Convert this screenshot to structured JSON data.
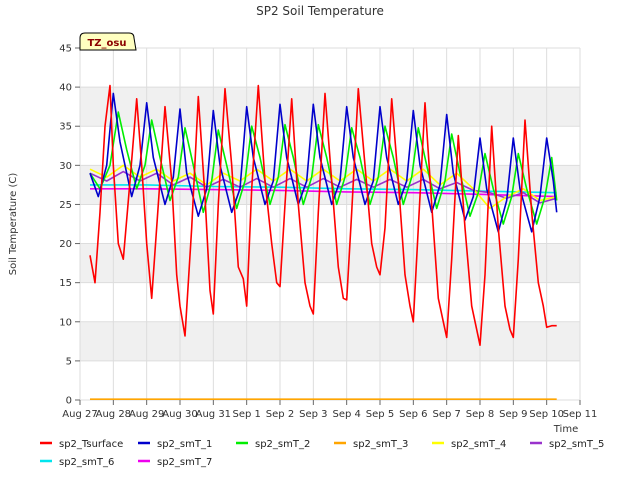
{
  "chart_data": {
    "type": "line",
    "title": "SP2 Soil Temperature",
    "xlabel": "Time",
    "ylabel": "Soil Temperature (C)",
    "badge": "TZ_osu",
    "xlim": [
      0,
      15
    ],
    "ylim": [
      0,
      45
    ],
    "yticks": [
      0,
      5,
      10,
      15,
      20,
      25,
      30,
      35,
      40,
      45
    ],
    "xticks": [
      {
        "pos": 0,
        "label": "Aug 27"
      },
      {
        "pos": 1,
        "label": "Aug 28"
      },
      {
        "pos": 2,
        "label": "Aug 29"
      },
      {
        "pos": 3,
        "label": "Aug 30"
      },
      {
        "pos": 4,
        "label": "Aug 31"
      },
      {
        "pos": 5,
        "label": "Sep 1"
      },
      {
        "pos": 6,
        "label": "Sep 2"
      },
      {
        "pos": 7,
        "label": "Sep 3"
      },
      {
        "pos": 8,
        "label": "Sep 4"
      },
      {
        "pos": 9,
        "label": "Sep 5"
      },
      {
        "pos": 10,
        "label": "Sep 6"
      },
      {
        "pos": 11,
        "label": "Sep 7"
      },
      {
        "pos": 12,
        "label": "Sep 8"
      },
      {
        "pos": 13,
        "label": "Sep 9"
      },
      {
        "pos": 14,
        "label": "Sep 10"
      },
      {
        "pos": 15,
        "label": "Sep 11"
      }
    ],
    "x_start": 0.3,
    "x_end": 14.3,
    "series": [
      {
        "name": "sp2_Tsurface",
        "color": "#ff0000",
        "x": [
          0.3,
          0.45,
          0.6,
          0.75,
          0.9,
          1.0,
          1.15,
          1.3,
          1.5,
          1.7,
          1.85,
          2.0,
          2.15,
          2.35,
          2.55,
          2.75,
          2.9,
          3.0,
          3.15,
          3.35,
          3.55,
          3.75,
          3.9,
          4.0,
          4.15,
          4.35,
          4.55,
          4.75,
          4.9,
          5.0,
          5.15,
          5.35,
          5.55,
          5.75,
          5.9,
          6.0,
          6.15,
          6.35,
          6.55,
          6.75,
          6.9,
          7.0,
          7.15,
          7.35,
          7.55,
          7.75,
          7.9,
          8.0,
          8.15,
          8.35,
          8.55,
          8.75,
          8.9,
          9.0,
          9.15,
          9.35,
          9.55,
          9.75,
          9.9,
          10.0,
          10.15,
          10.35,
          10.55,
          10.75,
          10.9,
          11.0,
          11.15,
          11.35,
          11.55,
          11.75,
          11.9,
          12.0,
          12.15,
          12.35,
          12.55,
          12.75,
          12.9,
          13.0,
          13.15,
          13.35,
          13.55,
          13.75,
          13.9,
          14.0,
          14.15,
          14.3
        ],
        "y": [
          18.5,
          15.0,
          24.0,
          35.0,
          40.2,
          30.0,
          20.0,
          18.0,
          28.0,
          38.5,
          30.0,
          20.0,
          13.0,
          25.0,
          37.5,
          28.0,
          16.0,
          12.0,
          8.2,
          22.0,
          38.8,
          26.0,
          14.0,
          11.0,
          25.0,
          39.8,
          30.0,
          17.0,
          15.5,
          12.0,
          27.0,
          40.2,
          28.0,
          20.0,
          15.0,
          14.5,
          25.0,
          38.5,
          25.0,
          15.0,
          12.0,
          11.0,
          24.0,
          39.2,
          28.0,
          17.0,
          13.0,
          12.8,
          24.0,
          39.8,
          30.0,
          20.0,
          17.0,
          16.0,
          22.0,
          38.5,
          28.0,
          16.0,
          12.0,
          10.0,
          22.0,
          38.0,
          25.0,
          13.0,
          10.0,
          8.0,
          18.0,
          33.8,
          22.0,
          12.0,
          9.0,
          7.0,
          16.0,
          35.0,
          22.0,
          12.0,
          9.0,
          8.0,
          18.0,
          35.8,
          24.0,
          15.0,
          12.0,
          9.3,
          9.5,
          9.5
        ]
      },
      {
        "name": "sp2_smT_1",
        "color": "#0000cc",
        "x": [
          0.3,
          0.55,
          0.8,
          1.0,
          1.2,
          1.55,
          1.8,
          2.0,
          2.2,
          2.55,
          2.8,
          3.0,
          3.2,
          3.55,
          3.8,
          4.0,
          4.2,
          4.55,
          4.8,
          5.0,
          5.2,
          5.55,
          5.8,
          6.0,
          6.2,
          6.55,
          6.8,
          7.0,
          7.2,
          7.55,
          7.8,
          8.0,
          8.2,
          8.55,
          8.8,
          9.0,
          9.2,
          9.55,
          9.8,
          10.0,
          10.2,
          10.55,
          10.8,
          11.0,
          11.2,
          11.55,
          11.8,
          12.0,
          12.2,
          12.55,
          12.8,
          13.0,
          13.2,
          13.55,
          13.8,
          14.0,
          14.2,
          14.3
        ],
        "y": [
          29.0,
          26.0,
          30.0,
          39.2,
          33.0,
          26.0,
          30.0,
          38.0,
          31.0,
          25.0,
          28.5,
          37.2,
          29.0,
          23.5,
          27.0,
          37.0,
          30.0,
          24.0,
          27.0,
          37.5,
          31.0,
          25.0,
          28.0,
          37.8,
          31.0,
          25.0,
          28.0,
          37.8,
          31.0,
          25.0,
          28.0,
          37.5,
          31.0,
          25.0,
          28.0,
          37.5,
          31.0,
          25.0,
          28.0,
          37.0,
          30.0,
          24.0,
          27.5,
          36.5,
          29.0,
          23.0,
          26.0,
          33.5,
          27.0,
          21.5,
          25.5,
          33.5,
          27.0,
          21.5,
          26.0,
          33.5,
          28.0,
          24.0
        ]
      },
      {
        "name": "sp2_smT_2",
        "color": "#00ee00",
        "x": [
          0.3,
          0.6,
          0.9,
          1.15,
          1.4,
          1.7,
          1.95,
          2.15,
          2.4,
          2.7,
          2.95,
          3.15,
          3.4,
          3.7,
          3.95,
          4.15,
          4.4,
          4.7,
          4.95,
          5.15,
          5.4,
          5.7,
          5.95,
          6.15,
          6.4,
          6.7,
          6.95,
          7.15,
          7.4,
          7.7,
          7.95,
          8.15,
          8.4,
          8.7,
          8.95,
          9.15,
          9.4,
          9.7,
          9.95,
          10.15,
          10.4,
          10.7,
          10.95,
          11.15,
          11.4,
          11.7,
          11.95,
          12.15,
          12.4,
          12.7,
          12.95,
          13.15,
          13.4,
          13.7,
          13.95,
          14.15,
          14.3
        ],
        "y": [
          29.0,
          27.0,
          30.0,
          36.8,
          32.0,
          27.0,
          30.0,
          35.8,
          31.0,
          25.5,
          28.5,
          34.8,
          30.0,
          24.0,
          28.0,
          34.5,
          30.0,
          24.5,
          28.0,
          35.0,
          31.0,
          25.0,
          28.5,
          35.2,
          31.0,
          25.0,
          28.5,
          35.2,
          31.0,
          25.0,
          28.5,
          34.8,
          31.0,
          25.0,
          28.5,
          35.0,
          31.0,
          25.0,
          28.5,
          34.8,
          30.0,
          24.5,
          28.0,
          34.0,
          29.0,
          23.5,
          26.5,
          31.5,
          27.0,
          22.5,
          26.0,
          31.5,
          27.0,
          22.5,
          26.0,
          31.0,
          25.5
        ]
      },
      {
        "name": "sp2_smT_3",
        "color": "#ffa500",
        "x": [
          0.3,
          14.3
        ],
        "y": [
          0.1,
          0.1
        ]
      },
      {
        "name": "sp2_smT_4",
        "color": "#ffff00",
        "x": [
          0.3,
          0.8,
          1.3,
          1.8,
          2.3,
          2.8,
          3.3,
          3.8,
          4.3,
          4.8,
          5.3,
          5.8,
          6.3,
          6.8,
          7.3,
          7.8,
          8.3,
          8.8,
          9.3,
          9.8,
          10.3,
          10.8,
          11.3,
          11.8,
          12.3,
          12.8,
          13.3,
          13.8,
          14.3
        ],
        "y": [
          29.5,
          28.5,
          30.0,
          28.5,
          29.5,
          28.0,
          29.0,
          27.5,
          29.0,
          28.0,
          29.5,
          28.0,
          29.5,
          28.0,
          29.5,
          28.0,
          29.5,
          28.0,
          29.5,
          28.0,
          29.5,
          27.5,
          29.0,
          27.0,
          24.5,
          26.0,
          27.0,
          25.5,
          26.0
        ]
      },
      {
        "name": "sp2_smT_5",
        "color": "#9932cc",
        "x": [
          0.3,
          0.8,
          1.3,
          1.8,
          2.3,
          2.8,
          3.3,
          3.8,
          4.3,
          4.8,
          5.3,
          5.8,
          6.3,
          6.8,
          7.3,
          7.8,
          8.3,
          8.8,
          9.3,
          9.8,
          10.3,
          10.8,
          11.3,
          11.8,
          12.3,
          12.8,
          13.3,
          13.8,
          14.3
        ],
        "y": [
          29.0,
          28.0,
          29.2,
          28.0,
          29.0,
          27.5,
          28.5,
          27.2,
          28.2,
          27.2,
          28.3,
          27.2,
          28.3,
          27.2,
          28.3,
          27.2,
          28.2,
          27.2,
          28.2,
          27.2,
          28.2,
          27.0,
          27.8,
          26.8,
          26.5,
          25.8,
          26.5,
          25.2,
          25.8
        ]
      },
      {
        "name": "sp2_smT_6",
        "color": "#00e5ee",
        "x": [
          0.3,
          2.0,
          4.0,
          6.0,
          8.0,
          10.0,
          12.0,
          14.3
        ],
        "y": [
          27.5,
          27.5,
          27.3,
          27.2,
          27.0,
          26.9,
          26.7,
          26.5
        ]
      },
      {
        "name": "sp2_smT_7",
        "color": "#ee00ee",
        "x": [
          0.3,
          2.0,
          4.0,
          6.0,
          8.0,
          10.0,
          12.0,
          14.3
        ],
        "y": [
          27.0,
          27.0,
          26.9,
          26.8,
          26.6,
          26.5,
          26.3,
          26.0
        ]
      }
    ]
  }
}
